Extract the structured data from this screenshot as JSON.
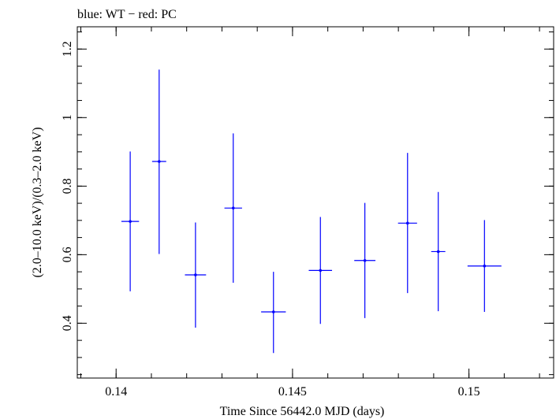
{
  "chart_data": {
    "type": "scatter",
    "title": "blue: WT − red: PC",
    "xlabel": "Time Since 56442.0 MJD (days)",
    "ylabel": "(2.0–10.0 keV)/(0.3–2.0 keV)",
    "xlim": [
      0.1389,
      0.1524
    ],
    "ylim": [
      0.24,
      1.265
    ],
    "x_ticks": [
      {
        "value": 0.14,
        "label": "0.14"
      },
      {
        "value": 0.145,
        "label": "0.145"
      },
      {
        "value": 0.15,
        "label": "0.15"
      }
    ],
    "y_ticks": [
      {
        "value": 0.4,
        "label": "0.4"
      },
      {
        "value": 0.6,
        "label": "0.6"
      },
      {
        "value": 0.8,
        "label": "0.8"
      },
      {
        "value": 1.0,
        "label": "1"
      },
      {
        "value": 1.2,
        "label": "1.2"
      }
    ],
    "x_minor_step": 0.001,
    "y_minor_step": 0.05,
    "grid": false,
    "series": [
      {
        "color": "#0000ff",
        "points": [
          {
            "x": 0.1404,
            "xerr": 0.00025,
            "y": 0.697,
            "yerr_low": 0.204,
            "yerr_high": 0.204
          },
          {
            "x": 0.14122,
            "xerr": 0.0002,
            "y": 0.872,
            "yerr_low": 0.27,
            "yerr_high": 0.268
          },
          {
            "x": 0.14225,
            "xerr": 0.0003,
            "y": 0.541,
            "yerr_low": 0.154,
            "yerr_high": 0.153
          },
          {
            "x": 0.14332,
            "xerr": 0.00025,
            "y": 0.736,
            "yerr_low": 0.218,
            "yerr_high": 0.218
          },
          {
            "x": 0.14446,
            "xerr": 0.00035,
            "y": 0.433,
            "yerr_low": 0.12,
            "yerr_high": 0.117
          },
          {
            "x": 0.14579,
            "xerr": 0.00033,
            "y": 0.554,
            "yerr_low": 0.156,
            "yerr_high": 0.156
          },
          {
            "x": 0.14705,
            "xerr": 0.0003,
            "y": 0.583,
            "yerr_low": 0.168,
            "yerr_high": 0.168
          },
          {
            "x": 0.14826,
            "xerr": 0.00027,
            "y": 0.692,
            "yerr_low": 0.204,
            "yerr_high": 0.205
          },
          {
            "x": 0.14913,
            "xerr": 0.0002,
            "y": 0.609,
            "yerr_low": 0.174,
            "yerr_high": 0.174
          },
          {
            "x": 0.15044,
            "xerr": 0.00048,
            "y": 0.567,
            "yerr_low": 0.134,
            "yerr_high": 0.134
          }
        ]
      }
    ]
  }
}
